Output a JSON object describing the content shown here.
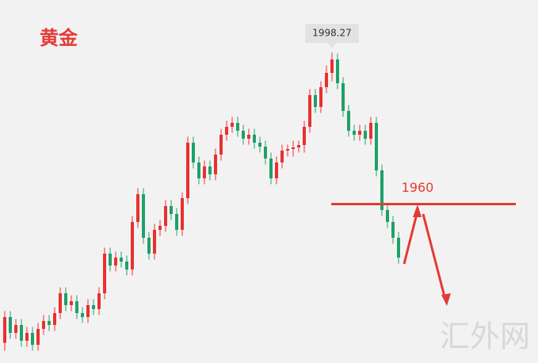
{
  "chart_data": {
    "type": "candlestick",
    "title": "黄金",
    "series": [
      {
        "open": [
          1925,
          1931.5,
          1927.5,
          1929.5,
          1925.5,
          1927.5,
          1924.5,
          1928.5,
          1930.5,
          1929.5,
          1932.5,
          1937.5,
          1934.5,
          1935.5,
          1932.5,
          1931.5,
          1934.5,
          1933.5,
          1937.5,
          1947.5,
          1944.5,
          1946.5,
          1945.5,
          1943.5,
          1955.5,
          1962.5,
          1951.5,
          1947.5,
          1953.5,
          1954.5,
          1959.5,
          1957.5,
          1953.5,
          1961.5,
          1975.5,
          1970.5,
          1966.5,
          1969.5,
          1967.5,
          1972.5,
          1977.5,
          1979.5,
          1980.5,
          1978.5,
          1976.5,
          1977.5,
          1975.5,
          1974.5,
          1971.5,
          1966.5,
          1970.5,
          1973.5,
          1973.9,
          1974.3,
          1974.9,
          1979.5,
          1987.5,
          1984.5,
          1989.5,
          1993.1,
          1996.5,
          1990.5,
          1983.5,
          1978.5,
          1977.5,
          1978.5,
          1976.5,
          1980.5,
          1968.5,
          1958.5,
          1955.5,
          1951.5
        ],
        "high": [
          1933,
          1933,
          1931,
          1931,
          1929,
          1929,
          1930,
          1932,
          1932,
          1934,
          1939,
          1939,
          1937,
          1937,
          1934,
          1936,
          1936,
          1939,
          1949,
          1949,
          1948,
          1948,
          1947,
          1957,
          1964,
          1964,
          1953,
          1955,
          1956,
          1961,
          1961,
          1959,
          1963,
          1977,
          1977,
          1972,
          1971,
          1971,
          1974,
          1979,
          1981,
          1982,
          1982,
          1980,
          1979,
          1979,
          1977,
          1976,
          1973,
          1972,
          1975,
          1975,
          1976,
          1976,
          1981,
          1989,
          1989,
          1991,
          1995,
          1998.27,
          1998,
          1992,
          1985,
          1980,
          1980,
          1980,
          1982,
          1982,
          1970,
          1960,
          1957,
          1953
        ],
        "low": [
          1923,
          1926,
          1926,
          1924,
          1924,
          1923,
          1923,
          1927,
          1928,
          1928,
          1931,
          1933,
          1933,
          1931,
          1930,
          1930,
          1932,
          1932,
          1936,
          1943,
          1943,
          1944,
          1942,
          1942,
          1954,
          1950,
          1946,
          1946,
          1952,
          1953,
          1956,
          1952,
          1952,
          1960,
          1969,
          1965,
          1965,
          1966,
          1966,
          1971,
          1976,
          1978,
          1977,
          1975,
          1975,
          1974,
          1973,
          1970,
          1965,
          1965,
          1969,
          1972,
          1972,
          1973,
          1973,
          1978,
          1983,
          1983,
          1988,
          1991,
          1989,
          1982,
          1977,
          1976,
          1976,
          1975,
          1975,
          1967,
          1957,
          1954,
          1950,
          1945
        ],
        "close": [
          1931.5,
          1927.5,
          1929.5,
          1925.5,
          1927.5,
          1924.5,
          1928.5,
          1930.5,
          1929.5,
          1932.5,
          1937.5,
          1934.5,
          1935.5,
          1932.5,
          1931.5,
          1934.5,
          1933.5,
          1937.5,
          1947.5,
          1944.5,
          1946.5,
          1945.5,
          1943.5,
          1955.5,
          1962.5,
          1951.5,
          1947.5,
          1953.5,
          1954.5,
          1959.5,
          1957.5,
          1953.5,
          1961.5,
          1975.5,
          1970.5,
          1966.5,
          1969.5,
          1967.5,
          1972.5,
          1977.5,
          1979.5,
          1980.5,
          1978.5,
          1976.5,
          1977.5,
          1975.5,
          1974.5,
          1971.5,
          1966.5,
          1970.5,
          1973.5,
          1973.9,
          1974.3,
          1974.9,
          1979.5,
          1987.5,
          1984.5,
          1989.5,
          1993.1,
          1996.5,
          1990.5,
          1983.5,
          1978.5,
          1977.5,
          1978.5,
          1976.5,
          1980.5,
          1968.5,
          1958.5,
          1955.5,
          1951.5,
          1946.5
        ]
      }
    ],
    "up_color": "#e8312f",
    "down_color": "#1fa06a",
    "ylim": [
      1919.9,
      2011.5
    ],
    "peak_label": 1998.27,
    "level": {
      "value": 1960,
      "color": "#e53935"
    },
    "watermark": "汇外网"
  }
}
